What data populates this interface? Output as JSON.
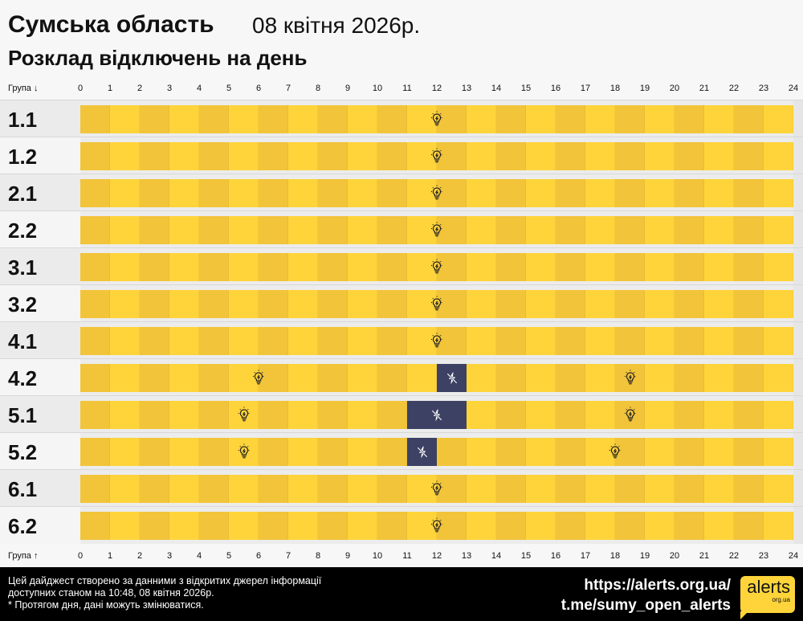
{
  "header": {
    "title": "Сумська область",
    "date": "08 квітня 2026р.",
    "subtitle": "Розклад відключень на день"
  },
  "axis": {
    "top_label": "Група ↓",
    "bottom_label": "Група ↑",
    "ticks": [
      "0",
      "1",
      "2",
      "3",
      "4",
      "5",
      "6",
      "7",
      "8",
      "9",
      "10",
      "11",
      "12",
      "13",
      "14",
      "15",
      "16",
      "17",
      "18",
      "19",
      "20",
      "21",
      "22",
      "23",
      "24"
    ]
  },
  "colors": {
    "power_on": "#ffd43a",
    "power_on_alt": "#f2c43a",
    "power_off": "#3d4163"
  },
  "groups": [
    {
      "name": "1.1",
      "outages": []
    },
    {
      "name": "1.2",
      "outages": []
    },
    {
      "name": "2.1",
      "outages": []
    },
    {
      "name": "2.2",
      "outages": []
    },
    {
      "name": "3.1",
      "outages": []
    },
    {
      "name": "3.2",
      "outages": []
    },
    {
      "name": "4.1",
      "outages": []
    },
    {
      "name": "4.2",
      "outages": [
        [
          12,
          13
        ]
      ]
    },
    {
      "name": "5.1",
      "outages": [
        [
          11,
          13
        ]
      ]
    },
    {
      "name": "5.2",
      "outages": [
        [
          11,
          12
        ]
      ]
    },
    {
      "name": "6.1",
      "outages": []
    },
    {
      "name": "6.2",
      "outages": []
    }
  ],
  "icons": {
    "on": "lightbulb-icon",
    "off": "power-off-icon"
  },
  "footer": {
    "line1": "Цей дайджест створено за данними з відкритих джерел інформації",
    "line2": "доступних станом на 10:48, 08 квітня 2026р.",
    "line3": "* Протягом дня, дані можуть змінюватися.",
    "url": "https://alerts.org.ua/",
    "telegram": "t.me/sumy_open_alerts",
    "logo_main": "alerts",
    "logo_sub": "org.ua"
  }
}
